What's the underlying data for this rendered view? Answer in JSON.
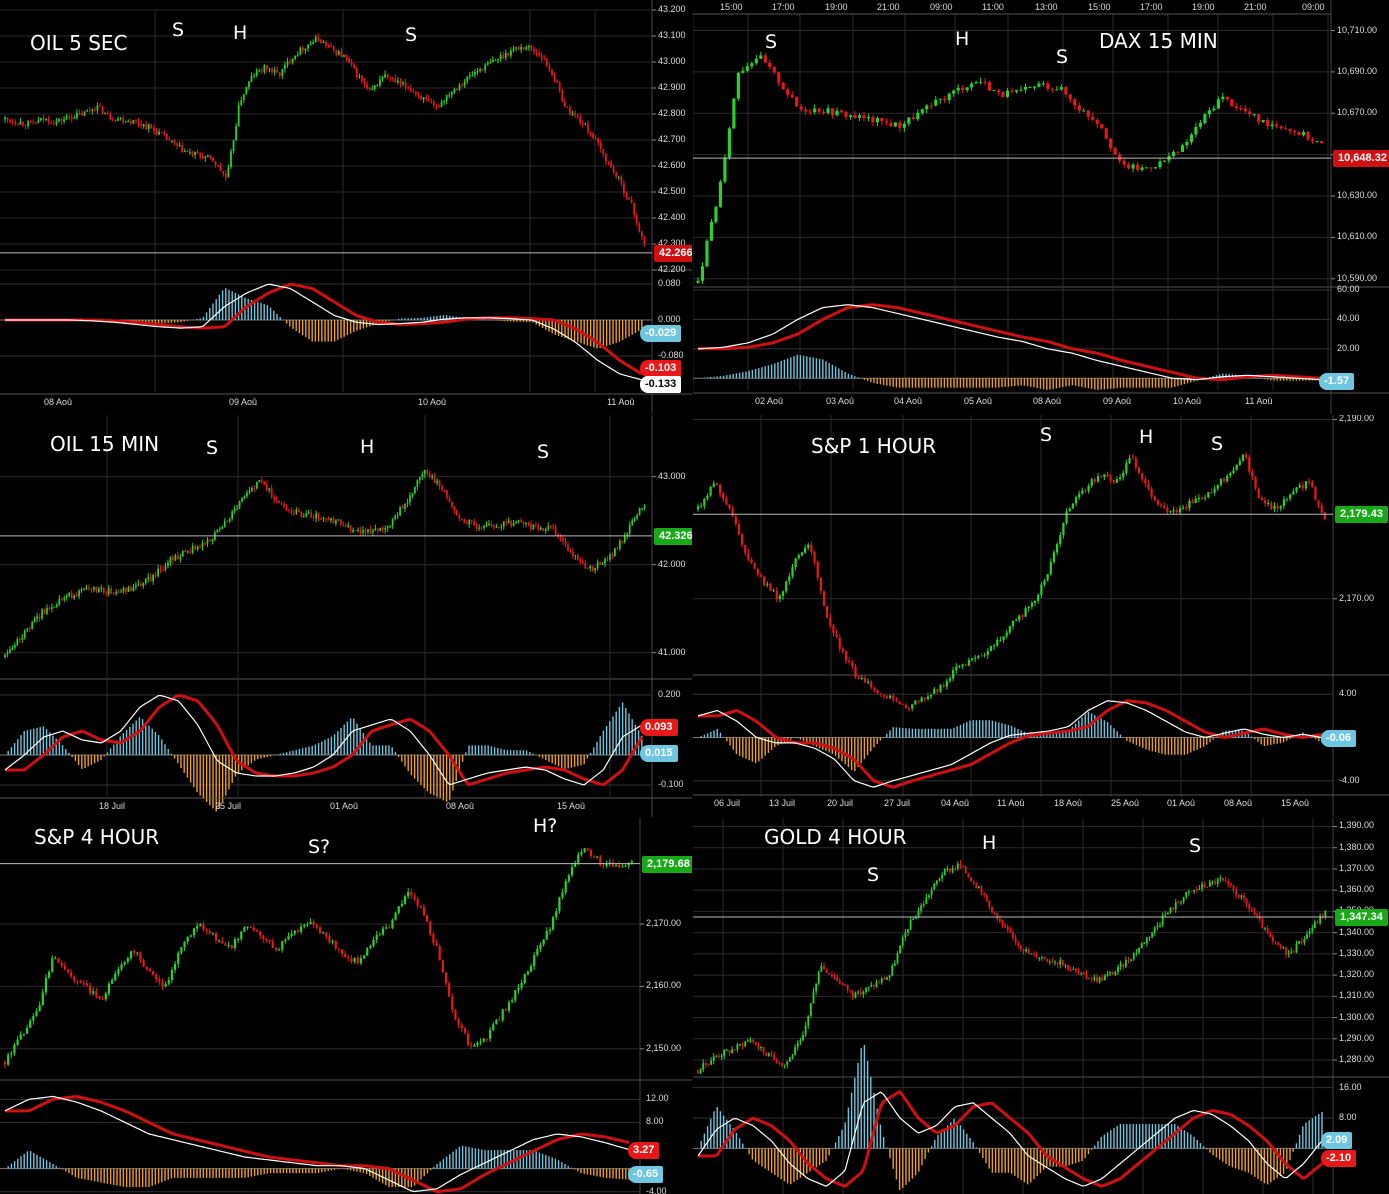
{
  "colors": {
    "up": "#2bd12b",
    "down": "#e81818",
    "macd": "#ffffff",
    "signal": "#d01010",
    "hist_pos": "#6ec6e0",
    "hist_neg": "#f0a020",
    "grid": "#2a2a2a",
    "price_line": "#bbbbbb"
  },
  "chart_data": [
    {
      "id": "oil5s",
      "type": "candlestick",
      "title": "OIL 5 SEC",
      "annotations": [
        "S",
        "H",
        "S"
      ],
      "yticks": [
        "43.200",
        "43.100",
        "43.000",
        "42.900",
        "42.800",
        "42.700",
        "42.600",
        "42.500",
        "42.400",
        "42.300",
        "42.200"
      ],
      "ylim": [
        42.2,
        43.2
      ],
      "last_price": "42.266",
      "last_price_color": "#d01010",
      "xticks": [
        "08 Aoû",
        "09 Aoû",
        "10 Aoû",
        "11 Aoû"
      ],
      "series": [
        42.78,
        42.77,
        42.76,
        42.78,
        42.77,
        42.79,
        42.8,
        42.83,
        42.79,
        42.78,
        42.77,
        42.75,
        42.72,
        42.68,
        42.65,
        42.64,
        42.62,
        42.55,
        42.85,
        42.95,
        42.98,
        42.95,
        43.02,
        43.06,
        43.09,
        43.05,
        43.02,
        42.95,
        42.88,
        42.95,
        42.92,
        42.9,
        42.86,
        42.82,
        42.88,
        42.92,
        42.96,
        42.99,
        43.02,
        43.05,
        43.06,
        43.03,
        42.95,
        42.82,
        42.78,
        42.72,
        42.63,
        42.55,
        42.45,
        42.29
      ],
      "macd": {
        "yticks": [
          "0.080",
          "0.000",
          "-0.080"
        ],
        "ylim": [
          -0.16,
          0.1
        ],
        "tags": [
          {
            "v": "-0.029",
            "c": "#6ec6e0"
          },
          {
            "v": "-0.103",
            "c": "#e81818"
          },
          {
            "v": "-0.133",
            "c": "#ffffff"
          }
        ],
        "line": [
          0,
          0,
          0,
          0,
          -0.002,
          -0.005,
          -0.01,
          -0.015,
          -0.018,
          -0.015,
          0.03,
          0.06,
          0.08,
          0.07,
          0.04,
          0.01,
          -0.005,
          -0.01,
          -0.008,
          -0.005,
          0.002,
          0.005,
          0.005,
          0.003,
          0.0,
          -0.02,
          -0.05,
          -0.09,
          -0.12,
          -0.133
        ]
      }
    },
    {
      "id": "dax15",
      "type": "candlestick",
      "title": "DAX 15 MIN",
      "annotations": [
        "S",
        "H",
        "S"
      ],
      "yticks": [
        "10,710.00",
        "10,690.00",
        "10,670.00",
        "10,650.00",
        "10,630.00",
        "10,610.00",
        "10,590.00"
      ],
      "ylim": [
        10586,
        10718
      ],
      "last_price": "10,648.32",
      "last_price_color": "#d01010",
      "top_ticks": [
        "15:00",
        "17:00",
        "19:00",
        "21:00",
        "09:00",
        "11:00",
        "13:00",
        "15:00",
        "17:00",
        "19:00",
        "21:00",
        "09:00"
      ],
      "xticks": [
        "02 Aoû",
        "03 Aoû",
        "04 Aoû",
        "05 Aoû",
        "08 Aoû",
        "09 Aoû",
        "10 Aoû",
        "11 Aoû"
      ],
      "series": [
        10588,
        10630,
        10690,
        10698,
        10686,
        10672,
        10672,
        10670,
        10668,
        10666,
        10664,
        10670,
        10676,
        10682,
        10686,
        10679,
        10680,
        10684,
        10682,
        10672,
        10665,
        10645,
        10643,
        10646,
        10652,
        10666,
        10678,
        10672,
        10666,
        10664,
        10660,
        10655
      ],
      "macd": {
        "yticks": [
          "60.00",
          "40.00",
          "20.00"
        ],
        "ylim": [
          -8,
          62
        ],
        "tags": [
          {
            "v": "-1.57",
            "c": "#6ec6e0"
          }
        ],
        "line": [
          20,
          21,
          24,
          30,
          40,
          48,
          50,
          48,
          44,
          40,
          36,
          32,
          28,
          25,
          20,
          17,
          12,
          8,
          4,
          0,
          -1,
          1,
          2,
          1,
          0,
          -1
        ]
      }
    },
    {
      "id": "oil15",
      "type": "candlestick",
      "title": "OIL 15 MIN",
      "annotations": [
        "S",
        "H",
        "S"
      ],
      "yticks": [
        "43.000",
        "42.000",
        "41.000"
      ],
      "ylim": [
        40.7,
        43.7
      ],
      "last_price": "42.326",
      "last_price_color": "#18a818",
      "xticks": [
        "18 Juil",
        "25 Juil",
        "01 Aoû",
        "08 Aoû",
        "15 Aoû"
      ],
      "series": [
        40.95,
        41.2,
        41.45,
        41.6,
        41.68,
        41.72,
        41.68,
        41.72,
        41.85,
        42.05,
        42.15,
        42.25,
        42.45,
        42.75,
        42.95,
        42.7,
        42.58,
        42.55,
        42.5,
        42.4,
        42.38,
        42.45,
        42.72,
        43.08,
        42.85,
        42.5,
        42.44,
        42.46,
        42.48,
        42.42,
        42.41,
        42.12,
        41.95,
        42.05,
        42.35,
        42.7
      ],
      "macd": {
        "yticks": [
          "0.200",
          "-0.100"
        ],
        "ylim": [
          -0.14,
          0.24
        ],
        "tags": [
          {
            "v": "0.093",
            "c": "#e81818"
          },
          {
            "v": "0.015",
            "c": "#6ec6e0"
          }
        ],
        "line": [
          -0.05,
          0.0,
          0.06,
          0.08,
          0.05,
          0.04,
          0.08,
          0.16,
          0.2,
          0.18,
          0.1,
          -0.02,
          -0.06,
          -0.07,
          -0.07,
          -0.06,
          -0.04,
          0.0,
          0.08,
          0.1,
          0.12,
          0.08,
          0.0,
          -0.1,
          -0.08,
          -0.06,
          -0.05,
          -0.04,
          -0.05,
          -0.08,
          -0.1,
          -0.05,
          0.06,
          0.1
        ]
      }
    },
    {
      "id": "sp1h",
      "type": "candlestick",
      "title": "S&P 1 HOUR",
      "annotations": [
        "S",
        "H",
        "S"
      ],
      "yticks": [
        "2,190.00",
        "2,170.00"
      ],
      "ylim": [
        2161.5,
        2190.5
      ],
      "last_price": "2,179.43",
      "last_price_color": "#18a818",
      "xticks": [
        "06 Juil",
        "13 Juil",
        "20 Juil",
        "27 Juil",
        "04 Aoû",
        "11 Aoû",
        "18 Aoû",
        "25 Aoû",
        "01 Aoû",
        "08 Aoû",
        "15 Aoû"
      ],
      "series": [
        2180,
        2183,
        2180,
        2175,
        2172,
        2170,
        2174,
        2176,
        2168,
        2164,
        2161,
        2160,
        2159,
        2158,
        2159,
        2160,
        2162,
        2163,
        2164,
        2166,
        2168,
        2170,
        2174,
        2180,
        2182,
        2184,
        2183,
        2186,
        2182,
        2180,
        2180,
        2181,
        2182,
        2184,
        2186,
        2181,
        2180,
        2182,
        2183,
        2179
      ],
      "macd": {
        "yticks": [
          "4.00",
          "-4.00"
        ],
        "ylim": [
          -5.5,
          5.5
        ],
        "tags": [
          {
            "v": "-0.06",
            "c": "#6ec6e0"
          }
        ],
        "line": [
          2,
          2.5,
          1.5,
          0,
          -0.5,
          -0.5,
          -1,
          -2,
          -4,
          -4.6,
          -4,
          -3.5,
          -3,
          -2.5,
          -1.5,
          -0.5,
          0.2,
          0.4,
          0.6,
          1,
          2.5,
          3.4,
          3.2,
          2.5,
          1.5,
          0.5,
          0,
          0.4,
          0.8,
          0.3,
          0,
          0.3,
          0
        ]
      }
    },
    {
      "id": "sp4h",
      "type": "candlestick",
      "title": "S&P 4 HOUR",
      "annotations": [
        "S?",
        "H?"
      ],
      "yticks": [
        "2,170.00",
        "2,160.00",
        "2,150.00"
      ],
      "ylim": [
        2145,
        2187
      ],
      "last_price": "2,179.68",
      "last_price_color": "#18a818",
      "series": [
        2148,
        2152,
        2156,
        2165,
        2162,
        2160,
        2158,
        2163,
        2166,
        2162,
        2160,
        2167,
        2170,
        2168,
        2166,
        2170,
        2168,
        2166,
        2169,
        2170,
        2168,
        2165,
        2164,
        2168,
        2170,
        2175,
        2172,
        2165,
        2155,
        2150,
        2152,
        2156,
        2160,
        2165,
        2170,
        2178,
        2182,
        2180,
        2179,
        2180
      ],
      "macd": {
        "yticks": [
          "12.00",
          "8.00",
          "-4.00"
        ],
        "ylim": [
          -4.4,
          15
        ],
        "tags": [
          {
            "v": "3.27",
            "c": "#e81818"
          },
          {
            "v": "-0.65",
            "c": "#6ec6e0"
          }
        ],
        "line": [
          10,
          12,
          12.5,
          11.5,
          10,
          8,
          6,
          5,
          4,
          3,
          2,
          1.5,
          1,
          0.5,
          0.5,
          0,
          -2,
          -4,
          -3.5,
          -1,
          1,
          3,
          5,
          6,
          5.5,
          4.5,
          3.3
        ]
      }
    },
    {
      "id": "gold4h",
      "type": "candlestick",
      "title": "GOLD 4 HOUR",
      "annotations": [
        "S",
        "H",
        "S"
      ],
      "yticks": [
        "1,390.00",
        "1,380.00",
        "1,370.00",
        "1,360.00",
        "1,350.00",
        "1,340.00",
        "1,330.00",
        "1,320.00",
        "1,310.00",
        "1,300.00",
        "1,290.00",
        "1,280.00"
      ],
      "ylim": [
        1272,
        1394
      ],
      "last_price": "1,347.34",
      "last_price_color": "#18a818",
      "series": [
        1275,
        1282,
        1285,
        1290,
        1282,
        1278,
        1290,
        1325,
        1318,
        1310,
        1315,
        1320,
        1342,
        1355,
        1368,
        1372,
        1362,
        1348,
        1338,
        1330,
        1328,
        1325,
        1320,
        1318,
        1322,
        1330,
        1340,
        1350,
        1358,
        1362,
        1365,
        1358,
        1348,
        1335,
        1330,
        1340,
        1350
      ],
      "macd": {
        "yticks": [
          "16.00",
          "8.00"
        ],
        "ylim": [
          -12,
          18
        ],
        "tags": [
          {
            "v": "2.09",
            "c": "#6ec6e0"
          },
          {
            "v": "-2.10",
            "c": "#e81818"
          }
        ],
        "line": [
          -2,
          5,
          8,
          6,
          2,
          -4,
          -8,
          -10,
          -6,
          12,
          15,
          8,
          4,
          6,
          11,
          12,
          8,
          4,
          -2,
          -5,
          -8,
          -10,
          -8,
          -4,
          0,
          4,
          8,
          10,
          9,
          6,
          2,
          -4,
          -8,
          -4,
          2
        ]
      }
    }
  ]
}
